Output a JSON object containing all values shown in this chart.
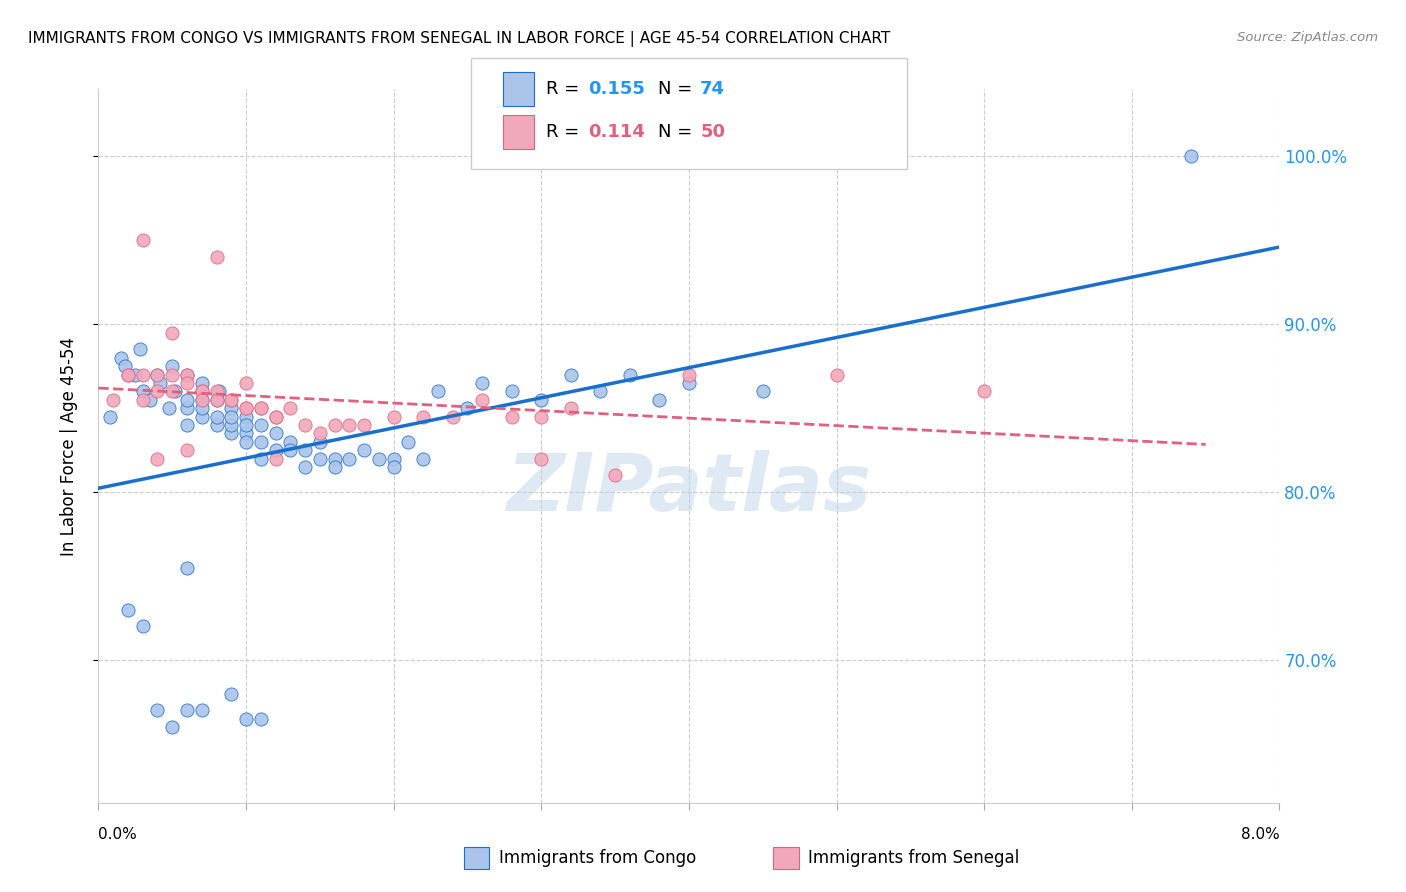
{
  "title": "IMMIGRANTS FROM CONGO VS IMMIGRANTS FROM SENEGAL IN LABOR FORCE | AGE 45-54 CORRELATION CHART",
  "source": "Source: ZipAtlas.com",
  "ylabel": "In Labor Force | Age 45-54",
  "ytick_labels": [
    "70.0%",
    "80.0%",
    "90.0%",
    "100.0%"
  ],
  "ytick_values": [
    0.7,
    0.8,
    0.9,
    1.0
  ],
  "xlim": [
    0.0,
    0.08
  ],
  "ylim": [
    0.615,
    1.04
  ],
  "color_congo": "#aac4ea",
  "color_senegal": "#f2a8bb",
  "trendline_congo_color": "#1a6fcc",
  "trendline_senegal_color": "#e06080",
  "watermark": "ZIPatlas",
  "congo_x": [
    0.0008,
    0.0015,
    0.0018,
    0.0025,
    0.0028,
    0.003,
    0.0035,
    0.004,
    0.0042,
    0.005,
    0.0048,
    0.0052,
    0.006,
    0.006,
    0.006,
    0.006,
    0.007,
    0.007,
    0.007,
    0.007,
    0.008,
    0.008,
    0.008,
    0.0082,
    0.009,
    0.009,
    0.009,
    0.009,
    0.01,
    0.01,
    0.01,
    0.01,
    0.011,
    0.011,
    0.011,
    0.012,
    0.012,
    0.013,
    0.013,
    0.014,
    0.014,
    0.015,
    0.015,
    0.016,
    0.016,
    0.017,
    0.018,
    0.019,
    0.02,
    0.02,
    0.021,
    0.022,
    0.023,
    0.025,
    0.026,
    0.028,
    0.03,
    0.032,
    0.034,
    0.036,
    0.038,
    0.04,
    0.045,
    0.002,
    0.003,
    0.004,
    0.005,
    0.006,
    0.007,
    0.009,
    0.01,
    0.011,
    0.074,
    0.006
  ],
  "congo_y": [
    0.845,
    0.88,
    0.875,
    0.87,
    0.885,
    0.86,
    0.855,
    0.87,
    0.865,
    0.875,
    0.85,
    0.86,
    0.84,
    0.85,
    0.87,
    0.855,
    0.845,
    0.855,
    0.865,
    0.85,
    0.855,
    0.84,
    0.845,
    0.86,
    0.835,
    0.85,
    0.84,
    0.845,
    0.835,
    0.845,
    0.83,
    0.84,
    0.83,
    0.82,
    0.84,
    0.835,
    0.825,
    0.83,
    0.825,
    0.825,
    0.815,
    0.82,
    0.83,
    0.82,
    0.815,
    0.82,
    0.825,
    0.82,
    0.82,
    0.815,
    0.83,
    0.82,
    0.86,
    0.85,
    0.865,
    0.86,
    0.855,
    0.87,
    0.86,
    0.87,
    0.855,
    0.865,
    0.86,
    0.73,
    0.72,
    0.67,
    0.66,
    0.67,
    0.67,
    0.68,
    0.665,
    0.665,
    1.0,
    0.755
  ],
  "senegal_x": [
    0.001,
    0.002,
    0.002,
    0.003,
    0.003,
    0.004,
    0.004,
    0.005,
    0.005,
    0.006,
    0.006,
    0.007,
    0.007,
    0.008,
    0.008,
    0.009,
    0.009,
    0.01,
    0.01,
    0.011,
    0.011,
    0.012,
    0.012,
    0.013,
    0.014,
    0.015,
    0.016,
    0.017,
    0.018,
    0.02,
    0.022,
    0.024,
    0.026,
    0.028,
    0.03,
    0.032,
    0.003,
    0.005,
    0.007,
    0.004,
    0.006,
    0.008,
    0.01,
    0.012,
    0.03,
    0.035,
    0.04,
    0.05,
    0.06
  ],
  "senegal_y": [
    0.855,
    0.87,
    0.87,
    0.87,
    0.855,
    0.87,
    0.86,
    0.87,
    0.86,
    0.87,
    0.865,
    0.86,
    0.86,
    0.86,
    0.855,
    0.855,
    0.855,
    0.85,
    0.85,
    0.85,
    0.85,
    0.845,
    0.845,
    0.85,
    0.84,
    0.835,
    0.84,
    0.84,
    0.84,
    0.845,
    0.845,
    0.845,
    0.855,
    0.845,
    0.845,
    0.85,
    0.95,
    0.895,
    0.855,
    0.82,
    0.825,
    0.94,
    0.865,
    0.82,
    0.82,
    0.81,
    0.87,
    0.87,
    0.86
  ]
}
